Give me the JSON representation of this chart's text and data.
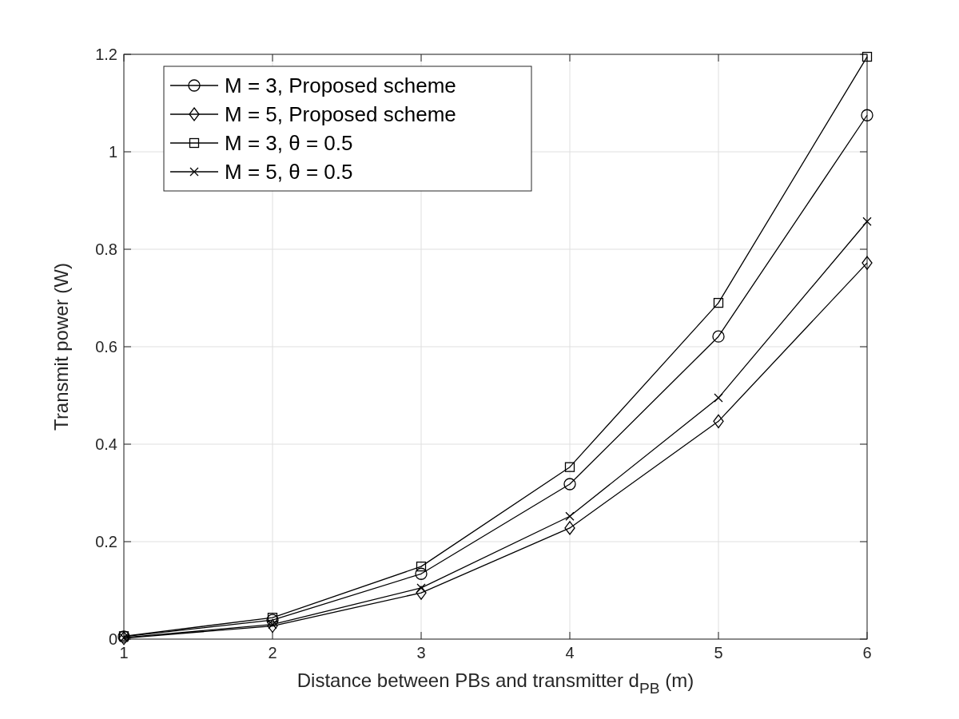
{
  "chart_data": {
    "type": "line",
    "xlabel": "Distance between PBs and transmitter d$_{PB}$ (m)",
    "ylabel": "Transmit power (W)",
    "x": [
      1,
      2,
      3,
      4,
      5,
      6
    ],
    "xlim": [
      1,
      6
    ],
    "xticks": [
      1,
      2,
      3,
      4,
      5,
      6
    ],
    "ylim": [
      0,
      1.2
    ],
    "yticks": [
      0,
      0.2,
      0.4,
      0.6,
      0.8,
      1,
      1.2
    ],
    "grid": true,
    "legend": "top left",
    "line_style": "solid",
    "series": [
      {
        "name": "M = 3, Proposed scheme",
        "color": "#000000",
        "marker": "circle",
        "values": [
          0.005,
          0.039,
          0.134,
          0.318,
          0.621,
          1.075
        ]
      },
      {
        "name": "M = 5, Proposed scheme",
        "color": "#000000",
        "marker": "diamond",
        "values": [
          0.002,
          0.027,
          0.095,
          0.228,
          0.447,
          0.772
        ]
      },
      {
        "name": "M = 3, θ = 0.5",
        "color": "#000000",
        "marker": "square",
        "values": [
          0.006,
          0.044,
          0.149,
          0.353,
          0.69,
          1.195
        ]
      },
      {
        "name": "M = 5, θ = 0.5",
        "color": "#000000",
        "marker": "cross",
        "values": [
          0.003,
          0.03,
          0.105,
          0.252,
          0.495,
          0.857
        ]
      }
    ]
  }
}
